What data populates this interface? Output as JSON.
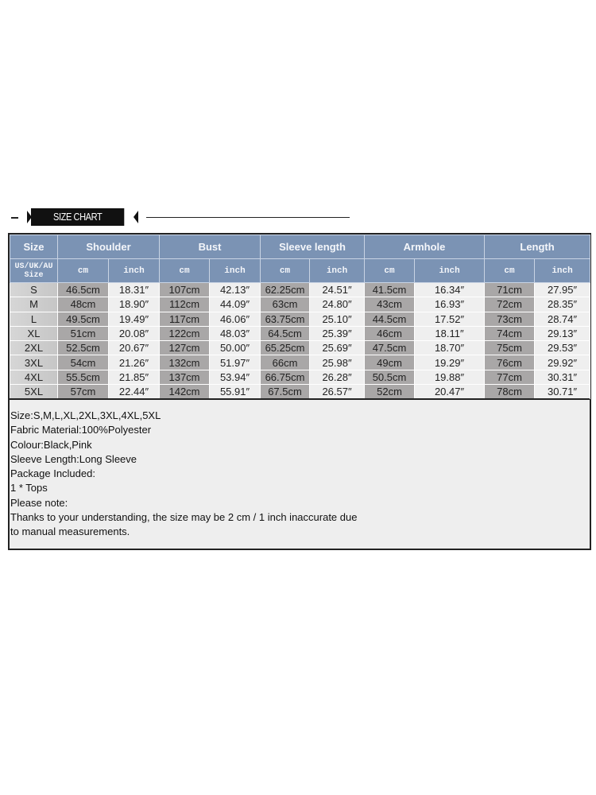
{
  "banner": {
    "title": "SIZE CHART"
  },
  "table": {
    "headers": [
      "Size",
      "Shoulder",
      "Bust",
      "Sleeve length",
      "Armhole",
      "Length"
    ],
    "size_sub_label": [
      "US/UK/AU",
      "Size"
    ],
    "unit_labels": [
      "cm",
      "inch"
    ],
    "rows": [
      {
        "size": "S",
        "values": [
          "46.5cm",
          "18.31″",
          "107cm",
          "42.13″",
          "62.25cm",
          "24.51″",
          "41.5cm",
          "16.34″",
          "71cm",
          "27.95″"
        ]
      },
      {
        "size": "M",
        "values": [
          "48cm",
          "18.90″",
          "112cm",
          "44.09″",
          "63cm",
          "24.80″",
          "43cm",
          "16.93″",
          "72cm",
          "28.35″"
        ]
      },
      {
        "size": "L",
        "values": [
          "49.5cm",
          "19.49″",
          "117cm",
          "46.06″",
          "63.75cm",
          "25.10″",
          "44.5cm",
          "17.52″",
          "73cm",
          "28.74″"
        ]
      },
      {
        "size": "XL",
        "values": [
          "51cm",
          "20.08″",
          "122cm",
          "48.03″",
          "64.5cm",
          "25.39″",
          "46cm",
          "18.11″",
          "74cm",
          "29.13″"
        ]
      },
      {
        "size": "2XL",
        "values": [
          "52.5cm",
          "20.67″",
          "127cm",
          "50.00″",
          "65.25cm",
          "25.69″",
          "47.5cm",
          "18.70″",
          "75cm",
          "29.53″"
        ]
      },
      {
        "size": "3XL",
        "values": [
          "54cm",
          "21.26″",
          "132cm",
          "51.97″",
          "66cm",
          "25.98″",
          "49cm",
          "19.29″",
          "76cm",
          "29.92″"
        ]
      },
      {
        "size": "4XL",
        "values": [
          "55.5cm",
          "21.85″",
          "137cm",
          "53.94″",
          "66.75cm",
          "26.28″",
          "50.5cm",
          "19.88″",
          "77cm",
          "30.31″"
        ]
      },
      {
        "size": "5XL",
        "values": [
          "57cm",
          "22.44″",
          "142cm",
          "55.91″",
          "67.5cm",
          "26.57″",
          "52cm",
          "20.47″",
          "78cm",
          "30.71″"
        ]
      }
    ]
  },
  "notes": [
    "Size:S,M,L,XL,2XL,3XL,4XL,5XL",
    "Fabric Material:100%Polyester",
    "Colour:Black,Pink",
    "Sleeve Length:Long Sleeve",
    "Package Included:",
    "1 * Tops",
    "Please note:",
    "Thanks to your understanding, the size may be 2 cm / 1 inch inaccurate due",
    "to manual measurements."
  ],
  "colors": {
    "header": "#7b93b4",
    "cm_cell": "#a9a7a7",
    "inch_cell": "#efefef",
    "banner": "#111111"
  }
}
